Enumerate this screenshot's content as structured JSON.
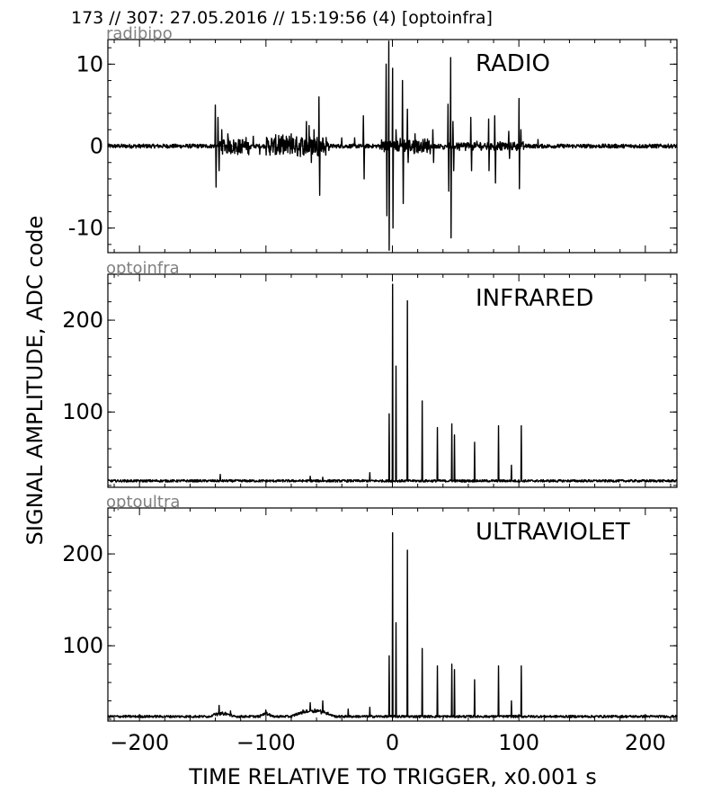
{
  "header": "173 // 307:   27.05.2016 // 15:19:56 (4)  [optoinfra]",
  "chart_data": {
    "type": "line",
    "title": "173 // 307:   27.05.2016 // 15:19:56 (4)  [optoinfra]",
    "xlabel": "TIME RELATIVE TO TRIGGER,   x0.001 s",
    "ylabel": "SIGNAL AMPLITUDE,  ADC code",
    "xlim": [
      -225,
      225
    ],
    "xticks": [
      "−200",
      "−100",
      "0",
      "100",
      "200"
    ],
    "xtick_values": [
      -200,
      -100,
      0,
      100,
      200
    ],
    "grid": false,
    "panels": [
      {
        "channel": "radibipo",
        "label": "RADIO",
        "ylim": [
          -13,
          13
        ],
        "yticks": [
          "10",
          "0",
          "-10"
        ],
        "ytick_values": [
          10,
          0,
          -10
        ],
        "baseline": 0,
        "noise": 0.25,
        "peaks": [
          {
            "x": -140,
            "y": 5
          },
          {
            "x": -139.5,
            "y": -5
          },
          {
            "x": -138,
            "y": 3.5
          },
          {
            "x": -137,
            "y": -3
          },
          {
            "x": -135,
            "y": 2
          },
          {
            "x": -130,
            "y": 1.5
          },
          {
            "x": -110,
            "y": 1.2
          },
          {
            "x": -105,
            "y": -1
          },
          {
            "x": -90,
            "y": 1.3
          },
          {
            "x": -80,
            "y": 1.5
          },
          {
            "x": -75,
            "y": -1.2
          },
          {
            "x": -68,
            "y": 3
          },
          {
            "x": -66,
            "y": 2.5
          },
          {
            "x": -64,
            "y": -2
          },
          {
            "x": -62,
            "y": 2
          },
          {
            "x": -58,
            "y": 6
          },
          {
            "x": -57.5,
            "y": -6
          },
          {
            "x": -55,
            "y": 1
          },
          {
            "x": -40,
            "y": 1
          },
          {
            "x": -30,
            "y": 1
          },
          {
            "x": -23,
            "y": 3.7
          },
          {
            "x": -22.5,
            "y": -4
          },
          {
            "x": -5,
            "y": 10
          },
          {
            "x": -4.5,
            "y": -8.5
          },
          {
            "x": -3,
            "y": 12.8
          },
          {
            "x": -2.5,
            "y": -12.7
          },
          {
            "x": 0,
            "y": 9.5
          },
          {
            "x": 0.5,
            "y": -10
          },
          {
            "x": 3,
            "y": 2
          },
          {
            "x": 8,
            "y": 8
          },
          {
            "x": 8.5,
            "y": -7
          },
          {
            "x": 12,
            "y": 4.5
          },
          {
            "x": 12.5,
            "y": -2
          },
          {
            "x": 18,
            "y": 1.5
          },
          {
            "x": 32,
            "y": 2
          },
          {
            "x": 32.5,
            "y": -2
          },
          {
            "x": 44,
            "y": 5.1
          },
          {
            "x": 44.5,
            "y": -5.5
          },
          {
            "x": 46,
            "y": 10.8
          },
          {
            "x": 46.5,
            "y": -11.2
          },
          {
            "x": 48,
            "y": 3
          },
          {
            "x": 48.5,
            "y": -3
          },
          {
            "x": 62,
            "y": 3.5
          },
          {
            "x": 62.5,
            "y": -3
          },
          {
            "x": 76,
            "y": 3.3
          },
          {
            "x": 76.5,
            "y": -3
          },
          {
            "x": 81,
            "y": 3.7
          },
          {
            "x": 81.5,
            "y": -4.5
          },
          {
            "x": 92,
            "y": 1.8
          },
          {
            "x": 92.5,
            "y": -1.5
          },
          {
            "x": 100,
            "y": 5.8
          },
          {
            "x": 100.5,
            "y": -5.2
          },
          {
            "x": 101.5,
            "y": 2
          },
          {
            "x": 115,
            "y": 0.8
          }
        ],
        "bursts": [
          {
            "from": -138,
            "to": -112,
            "amp": 0.9
          },
          {
            "from": -100,
            "to": -50,
            "amp": 1.2
          },
          {
            "from": -10,
            "to": 30,
            "amp": 0.8
          },
          {
            "from": 40,
            "to": 105,
            "amp": 0.4
          }
        ]
      },
      {
        "channel": "optoinfra",
        "label": "INFRARED",
        "ylim": [
          18,
          250
        ],
        "yticks": [
          "200",
          "100"
        ],
        "ytick_values": [
          200,
          100
        ],
        "baseline": 25,
        "noise": 1.3,
        "peaks": [
          {
            "x": -136,
            "y": 32
          },
          {
            "x": -65,
            "y": 30
          },
          {
            "x": -55,
            "y": 29
          },
          {
            "x": -18,
            "y": 34
          },
          {
            "x": -2.5,
            "y": 98
          },
          {
            "x": 0,
            "y": 239
          },
          {
            "x": 3,
            "y": 150
          },
          {
            "x": 12,
            "y": 221
          },
          {
            "x": 23.5,
            "y": 112
          },
          {
            "x": 35.5,
            "y": 83
          },
          {
            "x": 47,
            "y": 87
          },
          {
            "x": 49,
            "y": 75
          },
          {
            "x": 65,
            "y": 67
          },
          {
            "x": 84,
            "y": 85
          },
          {
            "x": 94,
            "y": 42
          },
          {
            "x": 102,
            "y": 85
          }
        ]
      },
      {
        "channel": "optoultra",
        "label": "ULTRAVIOLET",
        "ylim": [
          18,
          250
        ],
        "yticks": [
          "200",
          "100"
        ],
        "ytick_values": [
          200,
          100
        ],
        "baseline": 23,
        "noise": 1.3,
        "peaks": [
          {
            "x": -137,
            "y": 35
          },
          {
            "x": -128,
            "y": 29
          },
          {
            "x": -100,
            "y": 30
          },
          {
            "x": -65,
            "y": 38
          },
          {
            "x": -55,
            "y": 40
          },
          {
            "x": -35,
            "y": 31
          },
          {
            "x": -18,
            "y": 33
          },
          {
            "x": -2.5,
            "y": 89
          },
          {
            "x": 0,
            "y": 223
          },
          {
            "x": 3,
            "y": 125
          },
          {
            "x": 12,
            "y": 204
          },
          {
            "x": 23.5,
            "y": 97
          },
          {
            "x": 35.5,
            "y": 78
          },
          {
            "x": 47,
            "y": 80
          },
          {
            "x": 49,
            "y": 74
          },
          {
            "x": 65,
            "y": 63
          },
          {
            "x": 84,
            "y": 78
          },
          {
            "x": 94,
            "y": 40
          },
          {
            "x": 102,
            "y": 78
          }
        ],
        "humps": [
          {
            "from": -80,
            "to": -45,
            "amp": 8
          },
          {
            "from": -145,
            "to": -125,
            "amp": 4
          },
          {
            "from": -105,
            "to": -95,
            "amp": 4
          }
        ]
      }
    ]
  }
}
